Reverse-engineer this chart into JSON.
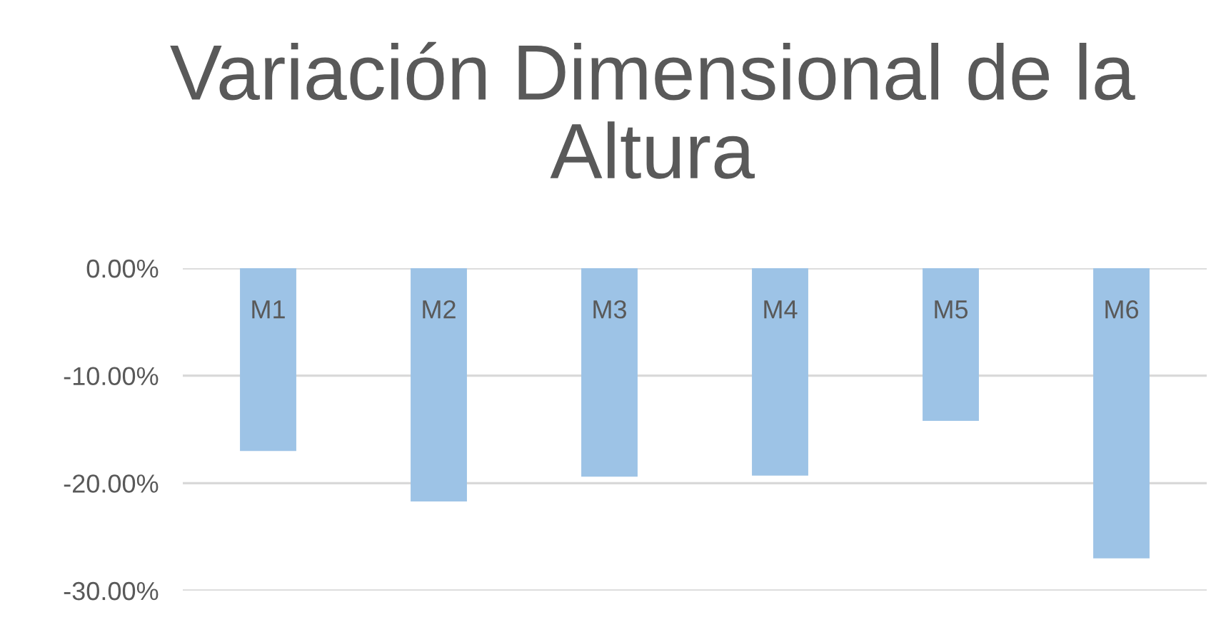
{
  "chart_data": {
    "type": "bar",
    "title": "Variación Dimensional de la Altura",
    "categories": [
      "M1",
      "M2",
      "M3",
      "M4",
      "M5",
      "M6"
    ],
    "values": [
      -17.0,
      -21.7,
      -19.4,
      -19.3,
      -14.2,
      -27.0
    ],
    "color": "#9dc3e6",
    "ylim": [
      -30,
      0
    ],
    "yticks": [
      {
        "value": 0,
        "label": "0.00%"
      },
      {
        "value": -10,
        "label": "-10.00%"
      },
      {
        "value": -20,
        "label": "-20.00%"
      },
      {
        "value": -30,
        "label": "-30.00%"
      }
    ],
    "grid": "y",
    "legend": false
  }
}
